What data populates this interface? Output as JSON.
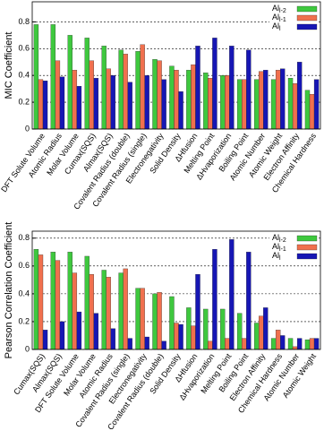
{
  "chart_data": [
    {
      "type": "bar",
      "y_label": "MIC Coefficient",
      "ylim": [
        0,
        0.95
      ],
      "yticks": [
        0,
        0.2,
        0.4,
        0.6,
        0.8
      ],
      "grid": true,
      "legend": "upper right",
      "categories": [
        "DFT Solute Volume",
        "Atomic Radius",
        "Molar Volume",
        "Cumax(SQS)",
        "Almax(SQS)",
        "Covalent Radius (double)",
        "Covalent Radius (single)",
        "Electronegativity",
        "Solid Density",
        "ΔHfusion",
        "Melting Point",
        "ΔHvaporization",
        "Boiling Point",
        "Atomic Number",
        "Atomic Weight",
        "Electron Affinity",
        "Chemical Hardness"
      ],
      "series": [
        {
          "name": "Al",
          "sub": "l-2",
          "color": "#3ec83e",
          "values": [
            0.78,
            0.78,
            0.7,
            0.68,
            0.62,
            0.59,
            0.58,
            0.52,
            0.47,
            0.44,
            0.42,
            0.4,
            0.37,
            0.37,
            0.37,
            0.38,
            0.29
          ]
        },
        {
          "name": "Al",
          "sub": "l-1",
          "color": "#f0704e",
          "values": [
            0.37,
            0.51,
            0.44,
            0.51,
            0.45,
            0.56,
            0.63,
            0.51,
            0.44,
            0.48,
            0.38,
            0.4,
            0.37,
            0.43,
            0.44,
            0.34,
            0.26
          ]
        },
        {
          "name": "Al",
          "sub": "l",
          "color": "#1616b4",
          "values": [
            0.36,
            0.39,
            0.32,
            0.38,
            0.4,
            0.35,
            0.4,
            0.37,
            0.28,
            0.62,
            0.68,
            0.62,
            0.59,
            0.44,
            0.45,
            0.5,
            0.37
          ]
        }
      ]
    },
    {
      "type": "bar",
      "y_label": "Pearson Correlation Coefficient",
      "ylim": [
        0,
        0.85
      ],
      "yticks": [
        0,
        0.2,
        0.4,
        0.6,
        0.8
      ],
      "grid": true,
      "legend": "upper right",
      "categories": [
        "Cumax(SQS)",
        "Almax(SQS)",
        "DFT Solute Volume",
        "Molar Volume",
        "Atomic Radius",
        "Covalent Radius (single)",
        "Electronegativity",
        "Covalent Radius (double)",
        "Solid Density",
        "ΔHfusion",
        "ΔHvaporization",
        "Melting Point",
        "Boiling Point",
        "Electron Affinity",
        "Chemical Hardness",
        "Atomic Number",
        "Atomic Weight"
      ],
      "series": [
        {
          "name": "Al",
          "sub": "l-2",
          "color": "#3ec83e",
          "values": [
            0.72,
            0.7,
            0.7,
            0.67,
            0.57,
            0.55,
            0.44,
            0.4,
            0.38,
            0.3,
            0.29,
            0.29,
            0.26,
            0.19,
            0.08,
            0.08,
            0.07
          ]
        },
        {
          "name": "Al",
          "sub": "l-1",
          "color": "#f0704e",
          "values": [
            0.68,
            0.64,
            0.55,
            0.54,
            0.52,
            0.58,
            0.44,
            0.41,
            0.19,
            0.17,
            0.06,
            0.08,
            0.08,
            0.24,
            0.14,
            0.02,
            0.08
          ]
        },
        {
          "name": "Al",
          "sub": "l",
          "color": "#1616b4",
          "values": [
            0.14,
            0.2,
            0.27,
            0.26,
            0.15,
            0.08,
            0.09,
            0.06,
            0.18,
            0.54,
            0.72,
            0.79,
            0.7,
            0.3,
            0.1,
            0.08,
            0.08
          ]
        }
      ]
    }
  ]
}
